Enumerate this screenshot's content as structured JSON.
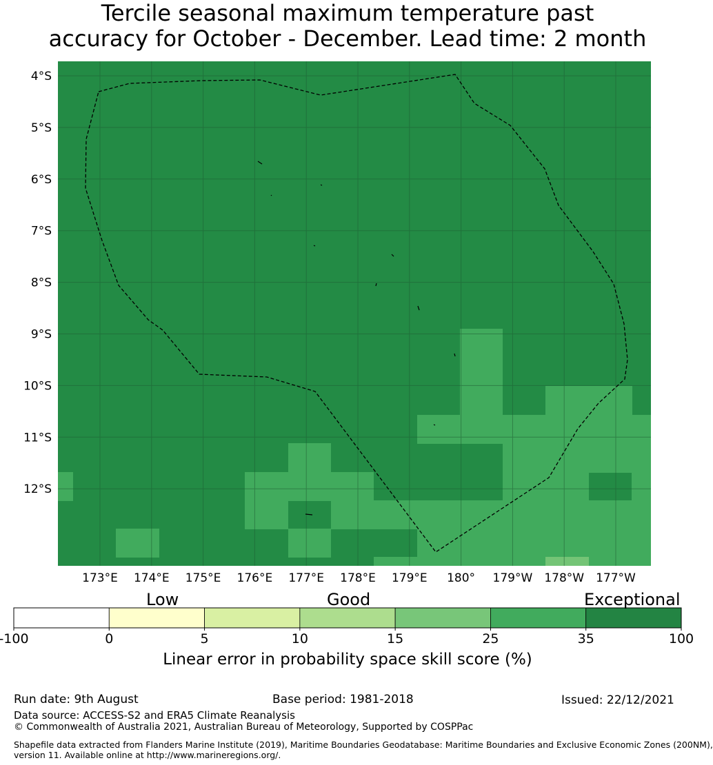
{
  "title": {
    "line1": "Tercile seasonal maximum temperature past",
    "line2": "accuracy for October - December. Lead time: 2 month"
  },
  "map": {
    "lat_labels": [
      "4°S",
      "5°S",
      "6°S",
      "7°S",
      "8°S",
      "9°S",
      "10°S",
      "11°S",
      "12°S"
    ],
    "lon_labels": [
      "173°E",
      "174°E",
      "175°E",
      "176°E",
      "177°E",
      "178°E",
      "179°E",
      "180°",
      "179°W",
      "178°W",
      "177°W"
    ],
    "colors": {
      "base": "#238b45",
      "medium": "#41ab5d",
      "light": "#74c476",
      "grid": "#1f5c33",
      "eez_line": "#000000"
    }
  },
  "colorbar": {
    "category_labels": [
      "Low",
      "Good",
      "Exceptional"
    ],
    "ticks": [
      "-100",
      "0",
      "5",
      "10",
      "15",
      "25",
      "35",
      "100"
    ],
    "colors": [
      "#ffffff",
      "#ffffcc",
      "#d9f0a3",
      "#addd8e",
      "#78c679",
      "#41ab5d",
      "#238443"
    ],
    "label": "Linear error in probability space skill score (%)"
  },
  "footer": {
    "run_date": "Run date: 9th August",
    "base_period": "Base period: 1981-2018",
    "issued": "Issued: 22/12/2021",
    "data_source": "Data source: ACCESS-S2 and ERA5 Climate Reanalysis",
    "copyright": "© Commonwealth of Australia 2021, Australian Bureau of Meteorology, Supported by COSPPac",
    "shapefile_line1": "Shapefile data extracted from Flanders Marine Institute (2019), Maritime Boundaries Geodatabase: Maritime Boundaries and Exclusive Economic Zones (200NM),",
    "shapefile_line2": "version 11. Available online at http://www.marineregions.org/."
  }
}
